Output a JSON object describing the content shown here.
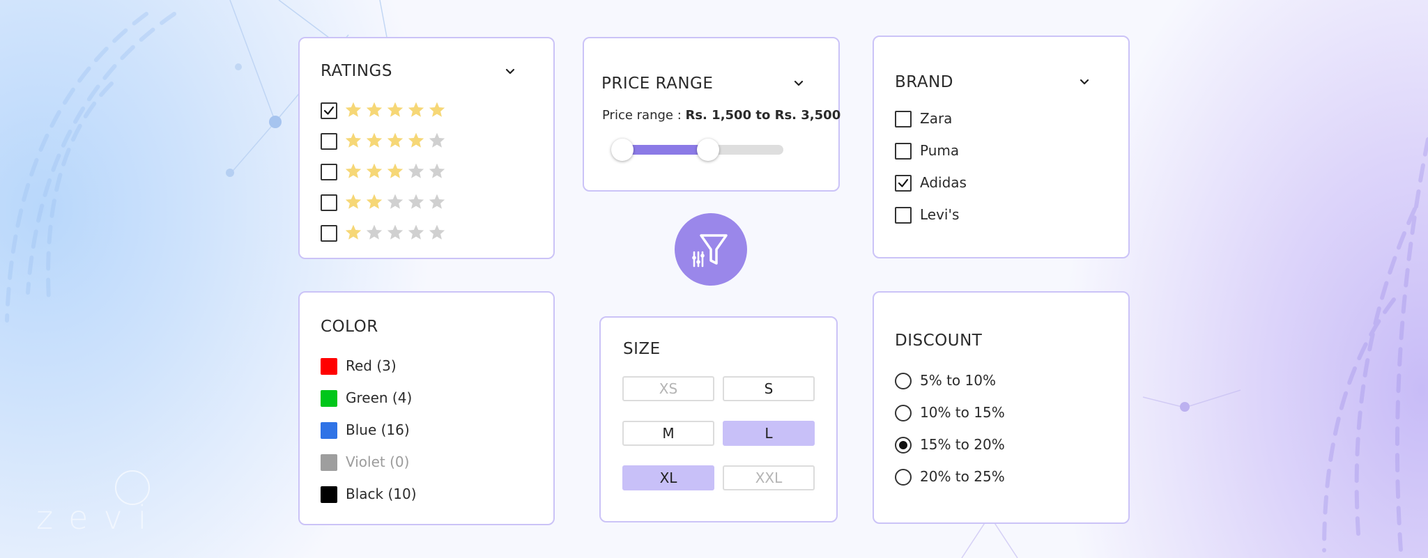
{
  "watermark": "zevi",
  "colors": {
    "accent": "#9a87ea",
    "star_on": "#f6d776",
    "star_off": "#d0d0d0",
    "size_selected": "#c8c0f8"
  },
  "ratings": {
    "title": "RATINGS",
    "rows": [
      {
        "stars": 5,
        "checked": true
      },
      {
        "stars": 4,
        "checked": false
      },
      {
        "stars": 3,
        "checked": false
      },
      {
        "stars": 2,
        "checked": false
      },
      {
        "stars": 1,
        "checked": false
      }
    ]
  },
  "price": {
    "title": "PRICE RANGE",
    "label_prefix": "Price range : ",
    "label_value": "Rs. 1,500 to Rs. 3,500",
    "range_fraction": [
      0.06,
      0.56
    ]
  },
  "brand": {
    "title": "BRAND",
    "items": [
      {
        "label": "Zara",
        "checked": false
      },
      {
        "label": "Puma",
        "checked": false
      },
      {
        "label": "Adidas",
        "checked": true
      },
      {
        "label": "Levi's",
        "checked": false
      }
    ]
  },
  "filter_icon": "filter-icon",
  "color": {
    "title": "COLOR",
    "items": [
      {
        "label": "Red (3)",
        "swatch": "#ff0000",
        "disabled": false
      },
      {
        "label": "Green (4)",
        "swatch": "#00c61a",
        "disabled": false
      },
      {
        "label": "Blue (16)",
        "swatch": "#2f73e6",
        "disabled": false
      },
      {
        "label": "Violet (0)",
        "swatch": "#9e9e9e",
        "disabled": true
      },
      {
        "label": "Black (10)",
        "swatch": "#000000",
        "disabled": false
      }
    ]
  },
  "size": {
    "title": "SIZE",
    "options": [
      {
        "label": "XS",
        "state": "disabled"
      },
      {
        "label": "S",
        "state": "normal"
      },
      {
        "label": "M",
        "state": "normal"
      },
      {
        "label": "L",
        "state": "selected"
      },
      {
        "label": "XL",
        "state": "selected"
      },
      {
        "label": "XXL",
        "state": "disabled"
      }
    ]
  },
  "discount": {
    "title": "DISCOUNT",
    "options": [
      {
        "label": "5% to 10%",
        "selected": false
      },
      {
        "label": "10% to 15%",
        "selected": false
      },
      {
        "label": "15% to 20%",
        "selected": true
      },
      {
        "label": "20% to 25%",
        "selected": false
      }
    ]
  }
}
